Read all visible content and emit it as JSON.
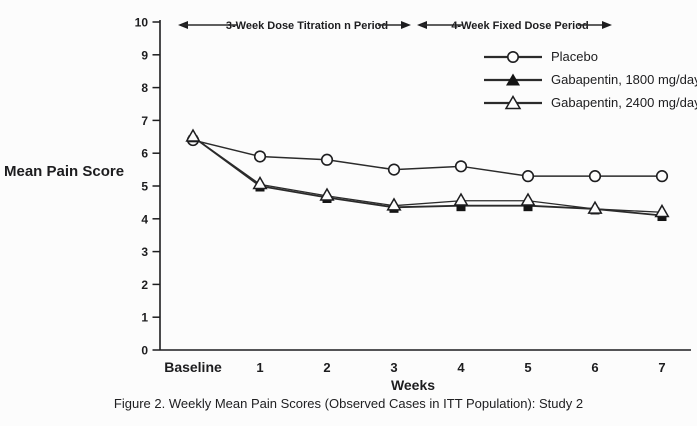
{
  "figure": {
    "caption": "Figure 2. Weekly Mean Pain Scores (Observed Cases in ITT Population): Study 2"
  },
  "chart_data": {
    "type": "line",
    "title": "",
    "ylabel": "Mean Pain Score",
    "xlabel": "Weeks",
    "ylim": [
      0,
      10
    ],
    "yticks": [
      0,
      1,
      2,
      3,
      4,
      5,
      6,
      7,
      8,
      9,
      10
    ],
    "categories": [
      "Baseline",
      "1",
      "2",
      "3",
      "4",
      "5",
      "6",
      "7"
    ],
    "series": [
      {
        "name": "Placebo",
        "marker": "open-circle",
        "values": [
          6.4,
          5.9,
          5.8,
          5.5,
          5.6,
          5.3,
          5.3,
          5.3
        ]
      },
      {
        "name": "Gabapentin, 1800 mg/day",
        "marker": "filled-triangle",
        "values": [
          6.5,
          5.0,
          4.65,
          4.35,
          4.4,
          4.4,
          4.3,
          4.1
        ]
      },
      {
        "name": "Gabapentin, 2400 mg/day",
        "marker": "open-triangle",
        "values": [
          6.5,
          5.05,
          4.7,
          4.4,
          4.55,
          4.55,
          4.3,
          4.2
        ]
      }
    ],
    "annotations": [
      {
        "label": "3-Week Dose Titration n Period"
      },
      {
        "label": "4-Week Fixed Dose Period"
      }
    ],
    "legend_position": "top-right",
    "grid": false
  },
  "colors": {
    "ink": "#1d1d1f",
    "line": "#2b2b2b",
    "background": "#fcfcfc"
  }
}
